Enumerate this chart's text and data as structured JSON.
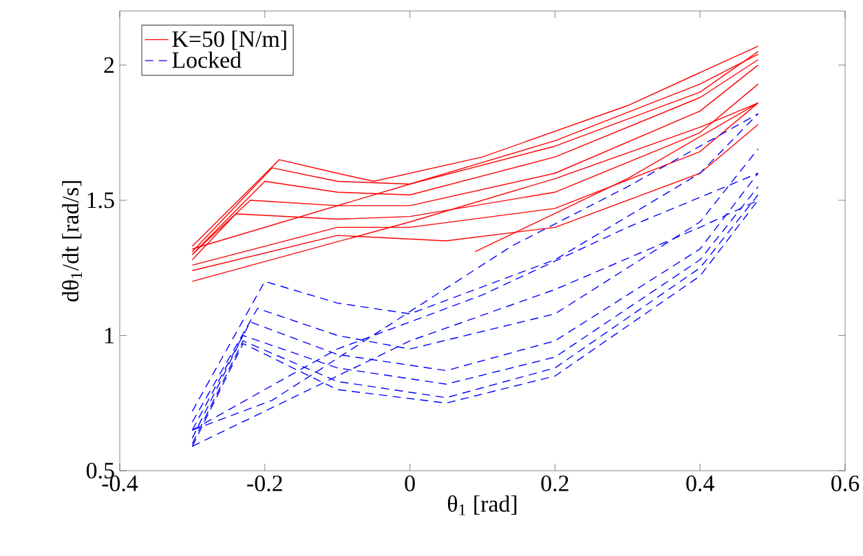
{
  "chart_data": {
    "type": "line",
    "xlabel": "θ$_{1}$ [rad]",
    "ylabel": "dθ$_{1}$/dt [rad/s]",
    "xlim": [
      -0.4,
      0.6
    ],
    "ylim": [
      0.5,
      2.2
    ],
    "xticks": [
      -0.4,
      -0.2,
      0,
      0.2,
      0.4,
      0.6
    ],
    "yticks": [
      0.5,
      1,
      1.5,
      2
    ],
    "legend": "top left",
    "series": [
      {
        "name": "K=50 [N/m]",
        "color": "#ff0000",
        "line_style": "solid",
        "x": [
          -0.3,
          -0.18,
          -0.1,
          -0.05,
          0.1,
          0.3,
          0.48
        ],
        "values": [
          1.33,
          1.65,
          1.6,
          1.57,
          1.66,
          1.85,
          2.07
        ]
      },
      {
        "color": "#ff0000",
        "line_style": "solid",
        "x": [
          -0.3,
          -0.19,
          -0.1,
          0,
          0.2,
          0.4,
          0.48
        ],
        "values": [
          1.31,
          1.62,
          1.57,
          1.56,
          1.7,
          1.9,
          2.05
        ]
      },
      {
        "color": "#ff0000",
        "line_style": "solid",
        "x": [
          -0.3,
          -0.2,
          -0.1,
          0,
          0.2,
          0.4,
          0.48
        ],
        "values": [
          1.3,
          1.57,
          1.53,
          1.52,
          1.66,
          1.88,
          2.02
        ]
      },
      {
        "color": "#ff0000",
        "line_style": "solid",
        "x": [
          -0.3,
          -0.22,
          -0.1,
          0,
          0.2,
          0.4,
          0.48
        ],
        "values": [
          1.3,
          1.5,
          1.48,
          1.48,
          1.6,
          1.83,
          2.0
        ]
      },
      {
        "color": "#ff0000",
        "line_style": "solid",
        "x": [
          -0.3,
          -0.24,
          -0.1,
          0,
          0.2,
          0.4,
          0.48
        ],
        "values": [
          1.28,
          1.45,
          1.43,
          1.44,
          1.53,
          1.75,
          1.93
        ]
      },
      {
        "color": "#ff0000",
        "line_style": "solid",
        "x": [
          -0.3,
          -0.1,
          0,
          0.2,
          0.4,
          0.48
        ],
        "values": [
          1.26,
          1.4,
          1.4,
          1.47,
          1.68,
          1.86
        ]
      },
      {
        "color": "#ff0000",
        "line_style": "solid",
        "x": [
          -0.3,
          -0.1,
          0.05,
          0.2,
          0.4,
          0.48
        ],
        "values": [
          1.24,
          1.37,
          1.35,
          1.4,
          1.6,
          1.78
        ]
      },
      {
        "color": "#ff0000",
        "line_style": "solid",
        "x": [
          -0.3,
          0,
          0.2,
          0.4,
          0.48
        ],
        "values": [
          1.32,
          1.56,
          1.72,
          1.93,
          2.04
        ]
      },
      {
        "color": "#ff0000",
        "line_style": "solid",
        "x": [
          -0.3,
          0,
          0.2,
          0.4,
          0.48
        ],
        "values": [
          1.2,
          1.42,
          1.58,
          1.77,
          1.86
        ]
      },
      {
        "color": "#ff0000",
        "line_style": "solid",
        "x": [
          0.09,
          0.3,
          0.48
        ],
        "values": [
          1.31,
          1.58,
          1.86
        ]
      },
      {
        "name": "Locked",
        "color": "#0000ff",
        "line_style": "dashed",
        "x": [
          -0.3,
          -0.2,
          -0.1,
          0,
          0.2,
          0.4,
          0.48
        ],
        "values": [
          0.72,
          1.2,
          1.12,
          1.08,
          1.28,
          1.6,
          1.82
        ]
      },
      {
        "color": "#0000ff",
        "line_style": "dashed",
        "x": [
          -0.3,
          -0.21,
          -0.1,
          0,
          0.2,
          0.4,
          0.48
        ],
        "values": [
          0.68,
          1.1,
          1.0,
          0.95,
          1.08,
          1.42,
          1.69
        ]
      },
      {
        "color": "#0000ff",
        "line_style": "dashed",
        "x": [
          -0.3,
          -0.22,
          -0.1,
          0.05,
          0.2,
          0.4,
          0.48
        ],
        "values": [
          0.65,
          1.05,
          0.93,
          0.87,
          0.98,
          1.32,
          1.6
        ]
      },
      {
        "color": "#0000ff",
        "line_style": "dashed",
        "x": [
          -0.3,
          -0.23,
          -0.1,
          0.05,
          0.2,
          0.4,
          0.48
        ],
        "values": [
          0.62,
          1.0,
          0.88,
          0.82,
          0.92,
          1.28,
          1.55
        ]
      },
      {
        "color": "#0000ff",
        "line_style": "dashed",
        "x": [
          -0.3,
          -0.23,
          -0.1,
          0.05,
          0.2,
          0.4,
          0.48
        ],
        "values": [
          0.6,
          0.98,
          0.83,
          0.77,
          0.88,
          1.25,
          1.52
        ]
      },
      {
        "color": "#0000ff",
        "line_style": "dashed",
        "x": [
          -0.3,
          -0.23,
          -0.1,
          0.05,
          0.2,
          0.4,
          0.48
        ],
        "values": [
          0.59,
          0.97,
          0.8,
          0.75,
          0.85,
          1.22,
          1.5
        ]
      },
      {
        "color": "#0000ff",
        "line_style": "dashed",
        "x": [
          -0.3,
          0,
          0.2,
          0.4,
          0.48
        ],
        "values": [
          0.59,
          0.98,
          1.17,
          1.4,
          1.5
        ]
      },
      {
        "color": "#0000ff",
        "line_style": "dashed",
        "x": [
          -0.3,
          -0.1,
          0.1,
          0.3,
          0.48
        ],
        "values": [
          0.65,
          0.95,
          1.15,
          1.4,
          1.6
        ]
      },
      {
        "color": "#0000ff",
        "line_style": "dashed",
        "x": [
          -0.3,
          -0.19,
          0.14,
          0.3,
          0.48
        ],
        "values": [
          0.65,
          0.76,
          1.33,
          1.55,
          1.82
        ]
      }
    ]
  }
}
